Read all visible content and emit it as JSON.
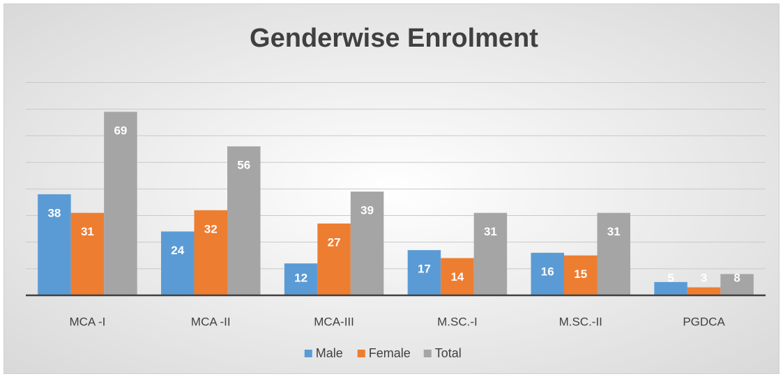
{
  "chart_data": {
    "type": "bar",
    "title": "Genderwise Enrolment",
    "categories": [
      "MCA -I",
      "MCA -II",
      "MCA-III",
      "M.SC.-I",
      "M.SC.-II",
      "PGDCA"
    ],
    "series": [
      {
        "name": "Male",
        "color": "#5b9bd5",
        "values": [
          38,
          24,
          12,
          17,
          16,
          5
        ]
      },
      {
        "name": "Female",
        "color": "#ed7d31",
        "values": [
          31,
          32,
          27,
          14,
          15,
          3
        ]
      },
      {
        "name": "Total",
        "color": "#a5a5a5",
        "values": [
          69,
          56,
          39,
          31,
          31,
          8
        ]
      }
    ],
    "ylim": [
      0,
      80
    ],
    "yticks": [
      0,
      10,
      20,
      30,
      40,
      50,
      60,
      70,
      80
    ],
    "grid": true,
    "legend": "bottom"
  }
}
